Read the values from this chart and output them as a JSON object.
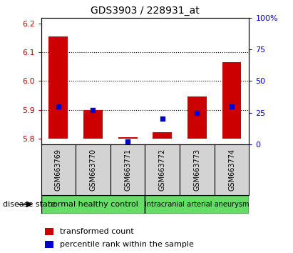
{
  "title": "GDS3903 / 228931_at",
  "samples": [
    "GSM663769",
    "GSM663770",
    "GSM663771",
    "GSM663772",
    "GSM663773",
    "GSM663774"
  ],
  "transformed_count": [
    6.155,
    5.9,
    5.805,
    5.822,
    5.945,
    6.065
  ],
  "percentile_rank": [
    30,
    27,
    2,
    20,
    25,
    30
  ],
  "baseline": 5.8,
  "ylim_left": [
    5.78,
    6.22
  ],
  "ylim_right": [
    0,
    100
  ],
  "yticks_left": [
    5.8,
    5.9,
    6.0,
    6.1,
    6.2
  ],
  "yticks_right": [
    0,
    25,
    50,
    75,
    100
  ],
  "bar_color": "#cc0000",
  "dot_color": "#0000cc",
  "group1_label": "normal healthy control",
  "group2_label": "intracranial arterial aneurysm",
  "group1_color": "#66dd66",
  "group2_color": "#66dd66",
  "disease_state_label": "disease state",
  "legend1": "transformed count",
  "legend2": "percentile rank within the sample",
  "left_label_color": "#cc0000",
  "right_label_color": "#0000cc",
  "label_gray": "#d3d3d3",
  "figsize": [
    4.11,
    3.54
  ],
  "dpi": 100
}
